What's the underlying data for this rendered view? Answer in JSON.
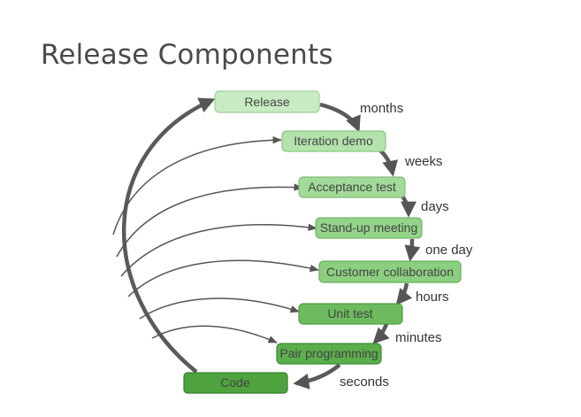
{
  "title": "Release Components",
  "components": [
    {
      "label": "Release",
      "fill": "#c8ebc3"
    },
    {
      "label": "Iteration demo",
      "fill": "#b4e2ad"
    },
    {
      "label": "Acceptance test",
      "fill": "#a2da99"
    },
    {
      "label": "Stand-up meeting",
      "fill": "#94d38a"
    },
    {
      "label": "Customer collaboration",
      "fill": "#8ccf80"
    },
    {
      "label": "Unit test",
      "fill": "#6dbb5e"
    },
    {
      "label": "Pair programming",
      "fill": "#5cae4c"
    },
    {
      "label": "Code",
      "fill": "#4fa33f"
    }
  ],
  "intervals": [
    "months",
    "weeks",
    "days",
    "one day",
    "hours",
    "minutes",
    "seconds"
  ]
}
